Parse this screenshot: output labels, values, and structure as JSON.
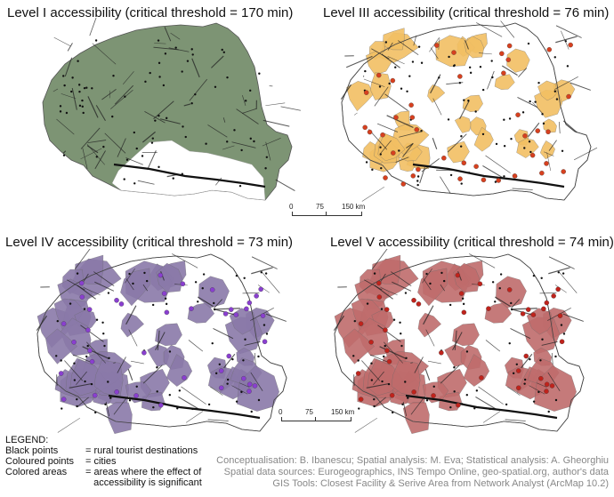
{
  "panels": {
    "level1": {
      "title": "Level I accessibility (critical threshold = 170 min)",
      "fill": "#7d9474"
    },
    "level3": {
      "title": "Level III accessibility (critical threshold = 76 min)",
      "fill": "#f2bf63",
      "point_color": "#d7401f"
    },
    "level4": {
      "title": "Level IV accessibility (critical threshold = 73 min)",
      "fill": "#8a79a8",
      "point_color": "#8a3fd0"
    },
    "level5": {
      "title": "Level V accessibility (critical threshold = 74 min)",
      "fill": "#bf6b6b",
      "point_color": "#c0231c"
    }
  },
  "scalebars": [
    {
      "labels": [
        "0",
        "75",
        "150 km"
      ]
    },
    {
      "labels": [
        "0",
        "75",
        "150 km"
      ]
    }
  ],
  "legend": {
    "title": "LEGEND:",
    "rows": [
      {
        "key": "Black points",
        "value": "= rural tourist destinations"
      },
      {
        "key": "Coloured points",
        "value": "= cities"
      },
      {
        "key": "Colored areas",
        "value": "= areas where the effect of"
      },
      {
        "key": "",
        "value": "   accessibility is significant"
      }
    ]
  },
  "credits": [
    "Conceptualisation: B. Ibanescu; Spatial analysis: M. Eva; Statistical analysis: A. Gheorghiu",
    "Spatial data sources: Eurogeographics, INS Tempo Online, geo-spatial.org, author's data",
    "GIS Tools: Closest Facility & Serive Area from Network Analyst (ArcMap 10.2)"
  ]
}
